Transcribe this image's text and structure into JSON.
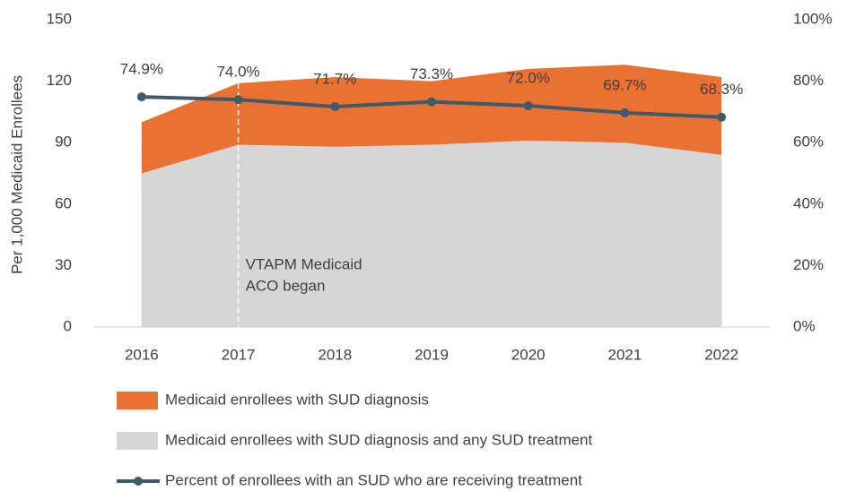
{
  "chart_data": {
    "type": "area-line",
    "categories": [
      "2016",
      "2017",
      "2018",
      "2019",
      "2020",
      "2021",
      "2022"
    ],
    "y_label": "Per 1,000 Medicaid Enrollees",
    "ylim": [
      0,
      150
    ],
    "yticks": [
      0,
      30,
      60,
      90,
      120,
      150
    ],
    "y2lim": [
      0,
      100
    ],
    "y2ticks": [
      {
        "value": 0,
        "label": "0%"
      },
      {
        "value": 20,
        "label": "20%"
      },
      {
        "value": 40,
        "label": "40%"
      },
      {
        "value": 60,
        "label": "60%"
      },
      {
        "value": 80,
        "label": "80%"
      },
      {
        "value": 100,
        "label": "100%"
      }
    ],
    "series": [
      {
        "name": "Medicaid enrollees with SUD diagnosis",
        "kind": "area",
        "color": "#e97132",
        "values": [
          100,
          119,
          122,
          120,
          126,
          128,
          122
        ]
      },
      {
        "name": "Medicaid enrollees with SUD diagnosis and any SUD treatment",
        "kind": "area",
        "color": "#d6d6d6",
        "values": [
          75,
          89,
          88,
          89,
          91,
          90,
          84
        ]
      },
      {
        "name": "Percent of enrollees with an SUD who are receiving treatment",
        "kind": "line",
        "axis": "y2",
        "color": "#3f5b6a",
        "values": [
          74.9,
          74.0,
          71.7,
          73.3,
          72.0,
          69.7,
          68.3
        ],
        "value_labels": [
          "74.9%",
          "74.0%",
          "71.7%",
          "73.3%",
          "72.0%",
          "69.7%",
          "68.3%"
        ]
      }
    ],
    "annotation": {
      "x": "2017",
      "text": [
        "VTAPM Medicaid",
        "ACO began"
      ]
    }
  }
}
